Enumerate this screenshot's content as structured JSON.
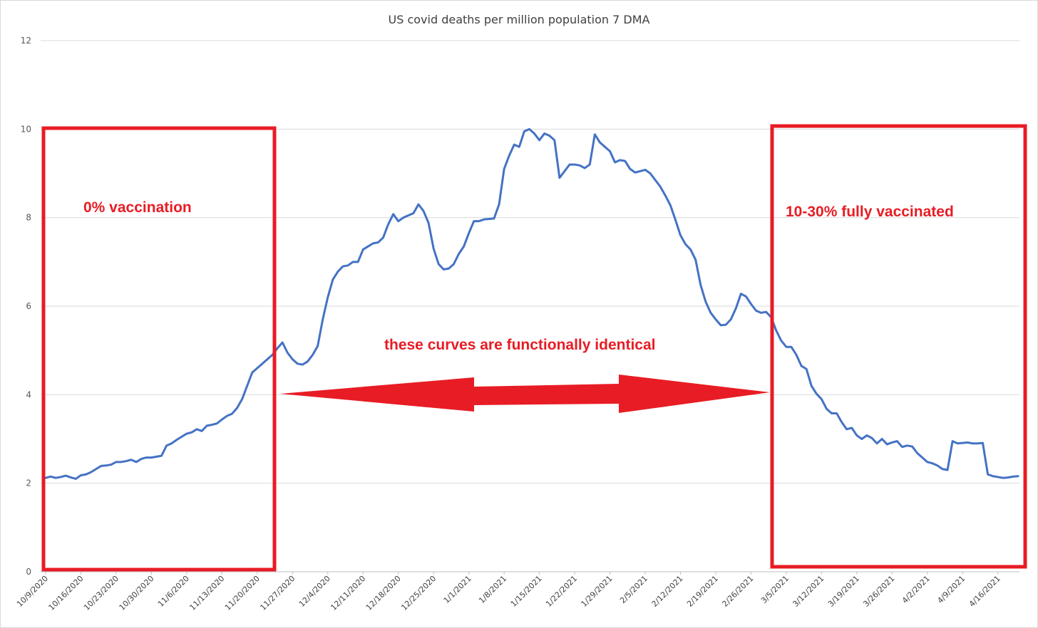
{
  "chart_data": {
    "type": "line",
    "title": "US covid deaths per million population 7 DMA",
    "xlabel": "",
    "ylabel": "",
    "ylim": [
      0,
      12
    ],
    "yticks": [
      0,
      2,
      4,
      6,
      8,
      10,
      12
    ],
    "grid": true,
    "legend": "none",
    "line_color": "#4472c4",
    "annotation_color": "#e81c24",
    "x_tick_labels": [
      "10/9/2020",
      "10/16/2020",
      "10/23/2020",
      "10/30/2020",
      "11/6/2020",
      "11/13/2020",
      "11/20/2020",
      "11/27/2020",
      "12/4/2020",
      "12/11/2020",
      "12/18/2020",
      "12/25/2020",
      "1/1/2021",
      "1/8/2021",
      "1/15/2021",
      "1/22/2021",
      "1/29/2021",
      "2/5/2021",
      "2/12/2021",
      "2/19/2021",
      "2/26/2021",
      "3/5/2021",
      "3/12/2021",
      "3/19/2021",
      "3/26/2021",
      "4/2/2021",
      "4/9/2021",
      "4/16/2021"
    ],
    "x_start": "10/9/2020",
    "x_step_days": 1,
    "series": [
      {
        "name": "US covid deaths per million population 7 DMA",
        "values": [
          2.12,
          2.15,
          2.12,
          2.14,
          2.17,
          2.13,
          2.1,
          2.18,
          2.2,
          2.25,
          2.32,
          2.39,
          2.4,
          2.42,
          2.48,
          2.48,
          2.5,
          2.53,
          2.48,
          2.55,
          2.58,
          2.58,
          2.6,
          2.62,
          2.85,
          2.9,
          2.98,
          3.05,
          3.12,
          3.15,
          3.22,
          3.18,
          3.3,
          3.32,
          3.35,
          3.44,
          3.52,
          3.57,
          3.7,
          3.9,
          4.2,
          4.5,
          4.6,
          4.7,
          4.8,
          4.9,
          5.05,
          5.18,
          4.95,
          4.8,
          4.7,
          4.68,
          4.75,
          4.9,
          5.1,
          5.7,
          6.2,
          6.6,
          6.78,
          6.9,
          6.92,
          7.0,
          7.0,
          7.28,
          7.35,
          7.42,
          7.44,
          7.55,
          7.85,
          8.08,
          7.92,
          8.0,
          8.05,
          8.1,
          8.3,
          8.15,
          7.88,
          7.3,
          6.95,
          6.83,
          6.85,
          6.95,
          7.18,
          7.35,
          7.65,
          7.92,
          7.92,
          7.96,
          7.97,
          7.98,
          8.3,
          9.1,
          9.4,
          9.65,
          9.6,
          9.95,
          10.0,
          9.9,
          9.75,
          9.9,
          9.85,
          9.75,
          8.9,
          9.05,
          9.2,
          9.2,
          9.18,
          9.12,
          9.2,
          9.88,
          9.7,
          9.6,
          9.5,
          9.25,
          9.3,
          9.28,
          9.1,
          9.02,
          9.05,
          9.08,
          9.0,
          8.85,
          8.7,
          8.5,
          8.28,
          7.95,
          7.6,
          7.4,
          7.28,
          7.05,
          6.48,
          6.1,
          5.85,
          5.7,
          5.57,
          5.58,
          5.7,
          5.95,
          6.28,
          6.22,
          6.05,
          5.9,
          5.85,
          5.87,
          5.75,
          5.45,
          5.22,
          5.08,
          5.08,
          4.9,
          4.65,
          4.58,
          4.2,
          4.02,
          3.9,
          3.68,
          3.58,
          3.58,
          3.38,
          3.22,
          3.25,
          3.08,
          3.0,
          3.08,
          3.02,
          2.9,
          3.0,
          2.88,
          2.92,
          2.95,
          2.82,
          2.85,
          2.83,
          2.68,
          2.58,
          2.48,
          2.45,
          2.4,
          2.32,
          2.3,
          2.95,
          2.9,
          2.91,
          2.92,
          2.9,
          2.9,
          2.91,
          2.2,
          2.16,
          2.14,
          2.12,
          2.13,
          2.15,
          2.16
        ]
      }
    ],
    "annotations": {
      "left_box_label": "0% vaccination",
      "right_box_label": "10-30% fully vaccinated",
      "center_label": "these curves are functionally identical"
    }
  }
}
